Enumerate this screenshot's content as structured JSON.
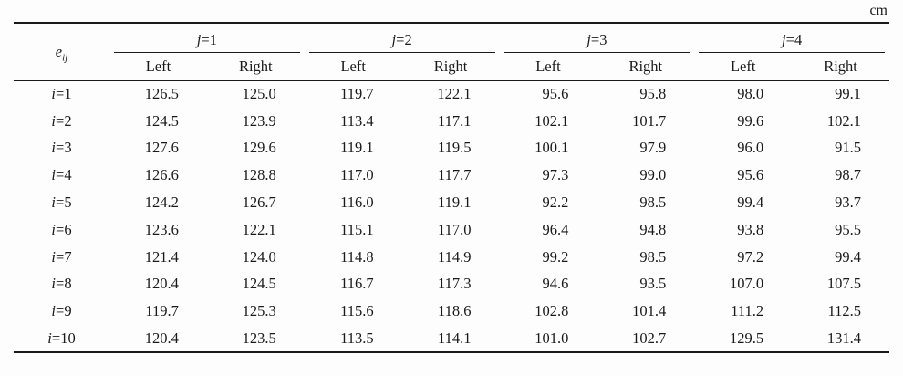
{
  "unit_label": "cm",
  "table": {
    "corner": {
      "base": "e",
      "sub": "ij"
    },
    "groups": [
      {
        "var": "j",
        "eq": "=1"
      },
      {
        "var": "j",
        "eq": "=2"
      },
      {
        "var": "j",
        "eq": "=3"
      },
      {
        "var": "j",
        "eq": "=4"
      }
    ],
    "subheaders": [
      "Left",
      "Right",
      "Left",
      "Right",
      "Left",
      "Right",
      "Left",
      "Right"
    ],
    "rows": [
      {
        "label": {
          "var": "i",
          "eq": "=1"
        },
        "values": [
          "126.5",
          "125.0",
          "119.7",
          "122.1",
          "95.6",
          "95.8",
          "98.0",
          "99.1"
        ]
      },
      {
        "label": {
          "var": "i",
          "eq": "=2"
        },
        "values": [
          "124.5",
          "123.9",
          "113.4",
          "117.1",
          "102.1",
          "101.7",
          "99.6",
          "102.1"
        ]
      },
      {
        "label": {
          "var": "i",
          "eq": "=3"
        },
        "values": [
          "127.6",
          "129.6",
          "119.1",
          "119.5",
          "100.1",
          "97.9",
          "96.0",
          "91.5"
        ]
      },
      {
        "label": {
          "var": "i",
          "eq": "=4"
        },
        "values": [
          "126.6",
          "128.8",
          "117.0",
          "117.7",
          "97.3",
          "99.0",
          "95.6",
          "98.7"
        ]
      },
      {
        "label": {
          "var": "i",
          "eq": "=5"
        },
        "values": [
          "124.2",
          "126.7",
          "116.0",
          "119.1",
          "92.2",
          "98.5",
          "99.4",
          "93.7"
        ]
      },
      {
        "label": {
          "var": "i",
          "eq": "=6"
        },
        "values": [
          "123.6",
          "122.1",
          "115.1",
          "117.0",
          "96.4",
          "94.8",
          "93.8",
          "95.5"
        ]
      },
      {
        "label": {
          "var": "i",
          "eq": "=7"
        },
        "values": [
          "121.4",
          "124.0",
          "114.8",
          "114.9",
          "99.2",
          "98.5",
          "97.2",
          "99.4"
        ]
      },
      {
        "label": {
          "var": "i",
          "eq": "=8"
        },
        "values": [
          "120.4",
          "124.5",
          "116.7",
          "117.3",
          "94.6",
          "93.5",
          "107.0",
          "107.5"
        ]
      },
      {
        "label": {
          "var": "i",
          "eq": "=9"
        },
        "values": [
          "119.7",
          "125.3",
          "115.6",
          "118.6",
          "102.8",
          "101.4",
          "111.2",
          "112.5"
        ]
      },
      {
        "label": {
          "var": "i",
          "eq": "=10"
        },
        "values": [
          "120.4",
          "123.5",
          "113.5",
          "114.1",
          "101.0",
          "102.7",
          "129.5",
          "131.4"
        ]
      }
    ]
  },
  "colors": {
    "text": "#1a1a1a",
    "rule": "#1a1a1a",
    "background": "#fdfdfd"
  }
}
